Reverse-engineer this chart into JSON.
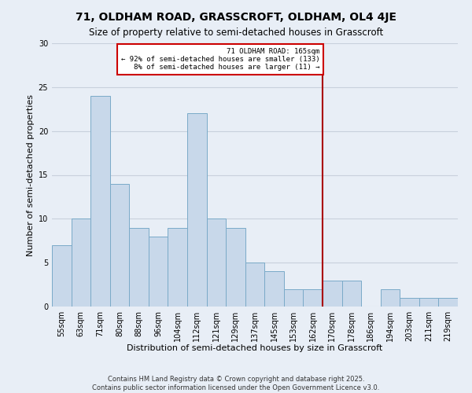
{
  "title": "71, OLDHAM ROAD, GRASSCROFT, OLDHAM, OL4 4JE",
  "subtitle": "Size of property relative to semi-detached houses in Grasscroft",
  "xlabel": "Distribution of semi-detached houses by size in Grasscroft",
  "ylabel": "Number of semi-detached properties",
  "categories": [
    "55sqm",
    "63sqm",
    "71sqm",
    "80sqm",
    "88sqm",
    "96sqm",
    "104sqm",
    "112sqm",
    "121sqm",
    "129sqm",
    "137sqm",
    "145sqm",
    "153sqm",
    "162sqm",
    "170sqm",
    "178sqm",
    "186sqm",
    "194sqm",
    "203sqm",
    "211sqm",
    "219sqm"
  ],
  "values": [
    7,
    10,
    24,
    14,
    9,
    8,
    9,
    22,
    10,
    9,
    5,
    4,
    2,
    2,
    3,
    3,
    0,
    2,
    1,
    1,
    1
  ],
  "bar_color": "#c8d8ea",
  "bar_edge_color": "#7aaac8",
  "bar_width": 1.0,
  "vline_x": 13.5,
  "vline_color": "#aa0000",
  "vline_label": "71 OLDHAM ROAD: 165sqm",
  "annotation_line1": "← 92% of semi-detached houses are smaller (133)",
  "annotation_line2": "8% of semi-detached houses are larger (11) →",
  "annotation_box_color": "white",
  "annotation_box_edge_color": "#cc0000",
  "ylim": [
    0,
    30
  ],
  "yticks": [
    0,
    5,
    10,
    15,
    20,
    25,
    30
  ],
  "footer1": "Contains HM Land Registry data © Crown copyright and database right 2025.",
  "footer2": "Contains public sector information licensed under the Open Government Licence v3.0.",
  "bg_color": "#e8eef6",
  "grid_color": "#c8d0dc",
  "title_fontsize": 10,
  "subtitle_fontsize": 8.5,
  "axis_label_fontsize": 8,
  "tick_fontsize": 7,
  "footer_fontsize": 6
}
